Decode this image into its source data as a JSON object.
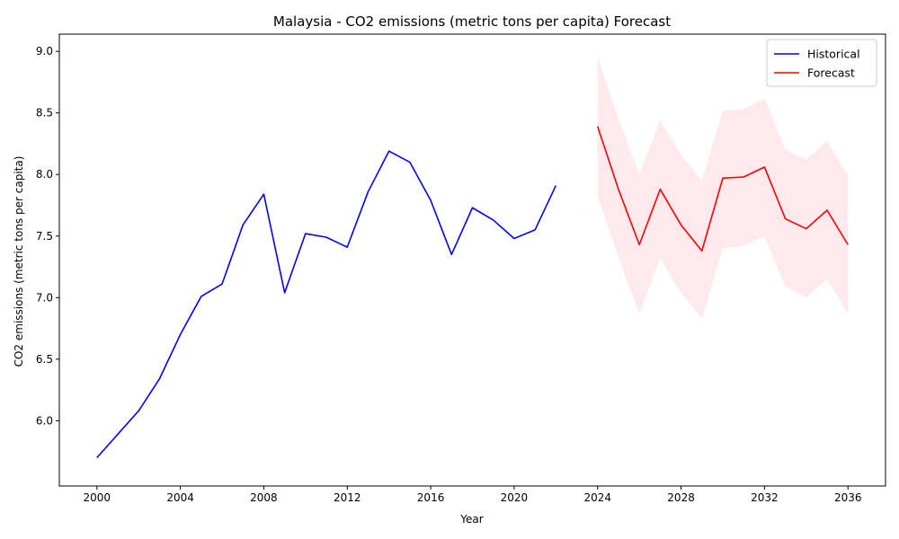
{
  "chart_data": {
    "type": "line",
    "title": "Malaysia - CO2 emissions (metric tons per capita) Forecast",
    "xlabel": "Year",
    "ylabel": "CO2 emissions (metric tons per capita)",
    "xlim": [
      1998.2,
      2037.8
    ],
    "ylim": [
      5.47,
      9.14
    ],
    "xticks": [
      2000,
      2004,
      2008,
      2012,
      2016,
      2020,
      2024,
      2028,
      2032,
      2036
    ],
    "yticks": [
      6.0,
      6.5,
      7.0,
      7.5,
      8.0,
      8.5,
      9.0
    ],
    "grid": false,
    "legend_position": "top-right",
    "series": [
      {
        "name": "Historical",
        "color": "#0000ff",
        "x": [
          2000,
          2001,
          2002,
          2003,
          2004,
          2005,
          2006,
          2007,
          2008,
          2009,
          2010,
          2011,
          2012,
          2013,
          2014,
          2015,
          2016,
          2017,
          2018,
          2019,
          2020,
          2021,
          2022
        ],
        "y": [
          5.7,
          5.89,
          6.08,
          6.34,
          6.7,
          7.01,
          7.11,
          7.59,
          7.84,
          7.04,
          7.52,
          7.49,
          7.41,
          7.86,
          8.19,
          8.1,
          7.79,
          7.35,
          7.73,
          7.63,
          7.48,
          7.55,
          7.91
        ]
      },
      {
        "name": "Forecast",
        "color": "#ff0000",
        "x": [
          2024,
          2025,
          2026,
          2027,
          2028,
          2029,
          2030,
          2031,
          2032,
          2033,
          2034,
          2035,
          2036
        ],
        "y": [
          8.39,
          7.88,
          7.43,
          7.88,
          7.59,
          7.38,
          7.97,
          7.98,
          8.06,
          7.64,
          7.56,
          7.71,
          7.43
        ],
        "lower": [
          7.82,
          7.33,
          6.87,
          7.32,
          7.04,
          6.83,
          7.4,
          7.42,
          7.5,
          7.09,
          7.0,
          7.15,
          6.87
        ],
        "upper": [
          8.95,
          8.45,
          8.0,
          8.44,
          8.16,
          7.95,
          8.52,
          8.53,
          8.62,
          8.2,
          8.12,
          8.27,
          7.99
        ],
        "band_color": "#ffc0cb"
      }
    ]
  }
}
